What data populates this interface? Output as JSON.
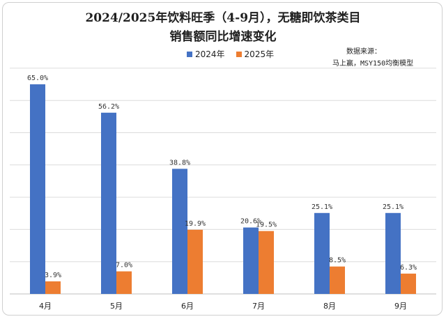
{
  "chart_data": {
    "type": "bar",
    "title_line1": "2024/2025年饮料旺季（4-9月），无糖即饮茶类目",
    "title_line2": "销售额同比增速变化",
    "categories": [
      "4月",
      "5月",
      "6月",
      "7月",
      "8月",
      "9月"
    ],
    "series": [
      {
        "name": "2024年",
        "color": "#4472C4",
        "values": [
          65.0,
          56.2,
          38.8,
          20.6,
          25.1,
          25.1
        ],
        "labels": [
          "65.0%",
          "56.2%",
          "38.8%",
          "20.6%",
          "25.1%",
          "25.1%"
        ]
      },
      {
        "name": "2025年",
        "color": "#ED7D31",
        "values": [
          3.9,
          7.0,
          19.9,
          19.5,
          8.5,
          6.3
        ],
        "labels": [
          "3.9%",
          "7.0%",
          "19.9%",
          "19.5%",
          "8.5%",
          "6.3%"
        ]
      }
    ],
    "ylim": [
      0,
      70
    ],
    "grid": true,
    "legend_position": "top-center"
  },
  "source": {
    "line1": "数据来源：",
    "line2": "马上赢，MSY150均衡模型"
  }
}
